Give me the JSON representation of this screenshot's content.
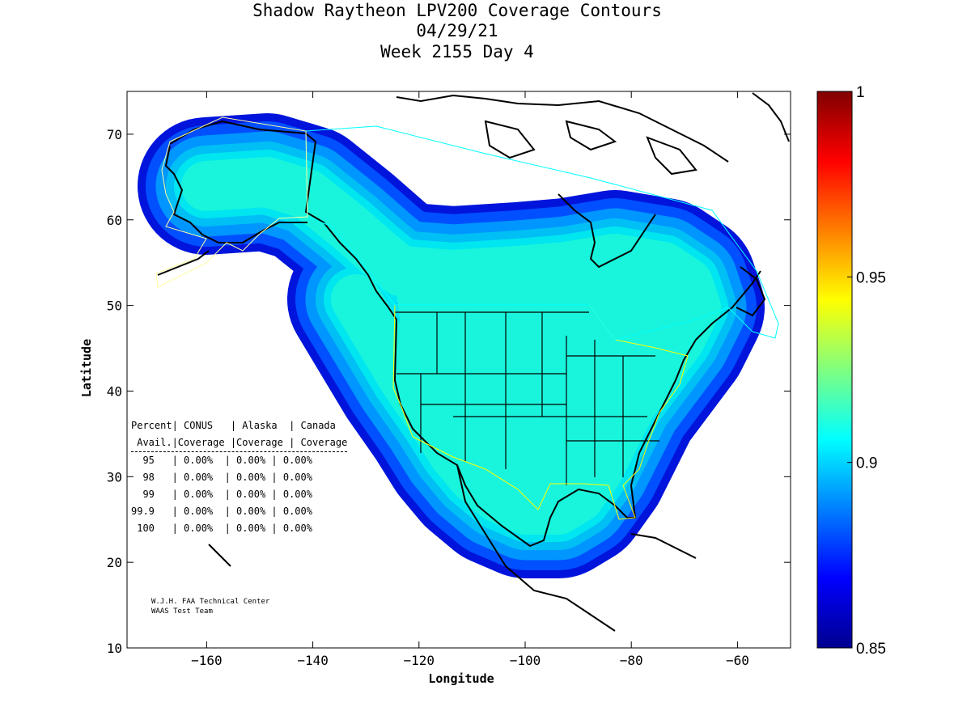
{
  "title": {
    "line1": "Shadow Raytheon LPV200 Coverage Contours",
    "line2": "04/29/21",
    "line3": "Week 2155 Day 4"
  },
  "axes": {
    "xlabel": "Longitude",
    "ylabel": "Latitude",
    "x_ticks": [
      -160,
      -140,
      -120,
      -100,
      -80,
      -60
    ],
    "y_ticks": [
      10,
      20,
      30,
      40,
      50,
      60,
      70
    ],
    "xlim": [
      -175,
      -50
    ],
    "ylim": [
      10,
      75
    ]
  },
  "colorbar": {
    "labels": [
      "1",
      "0.95",
      "0.9",
      "0.85"
    ],
    "range": [
      0.85,
      1.0
    ]
  },
  "stats_table": {
    "header1": "Percent| CONUS   | Alaska  | Canada",
    "header2": " Avail.|Coverage |Coverage | Coverage",
    "rows": [
      "  95   | 0.00%  | 0.00% | 0.00%",
      "  98   | 0.00%  | 0.00% | 0.00%",
      "  99   | 0.00%  | 0.00% | 0.00%",
      "99.9   | 0.00%  | 0.00% | 0.00%",
      " 100   | 0.00%  | 0.00% | 0.00%"
    ]
  },
  "credit": {
    "line1": "W.J.H. FAA Technical Center",
    "line2": "WAAS Test Team"
  },
  "colors": {
    "coverage_core": "#19f5dc",
    "coverage_light": "#00e6f0",
    "coverage_mid": "#00bff5",
    "coverage_blue": "#0096ff",
    "coverage_deep": "#0050ff",
    "coverage_edge": "#0014dc",
    "conus_boundary": "#ffff00",
    "canada_boundary": "#00ffff",
    "alaska_boundary": "#ffffa0"
  }
}
